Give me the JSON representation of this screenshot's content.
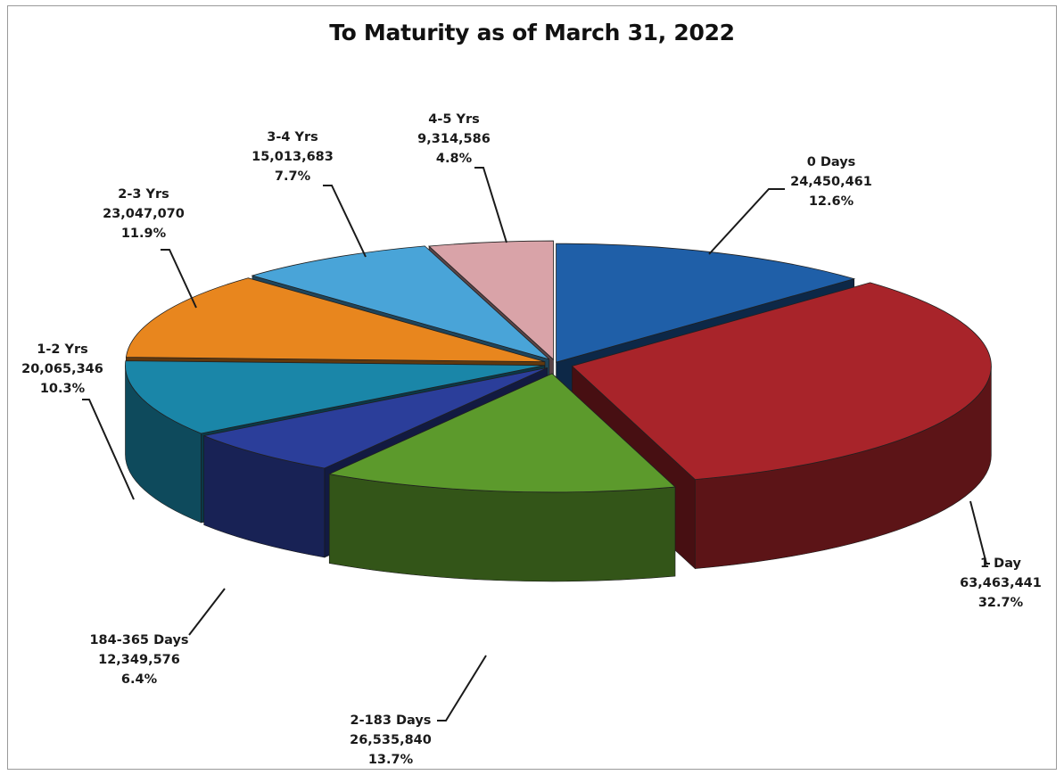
{
  "chart_data": {
    "type": "pie",
    "title": "To Maturity as of March 31, 2022",
    "slices": [
      {
        "label": "0 Days",
        "value": 24450461,
        "value_text": "24,450,461",
        "percent_text": "12.6%",
        "color": "#1f5fa8"
      },
      {
        "label": "1 Day",
        "value": 63463441,
        "value_text": "63,463,441",
        "percent_text": "32.7%",
        "color": "#a8242a"
      },
      {
        "label": "2-183 Days",
        "value": 26535840,
        "value_text": "26,535,840",
        "percent_text": "13.7%",
        "color": "#5c9a2c"
      },
      {
        "label": "184-365 Days",
        "value": 12349576,
        "value_text": "12,349,576",
        "percent_text": "6.4%",
        "color": "#2b3e9a"
      },
      {
        "label": "1-2 Yrs",
        "value": 20065346,
        "value_text": "20,065,346",
        "percent_text": "10.3%",
        "color": "#1a86a8"
      },
      {
        "label": "2-3 Yrs",
        "value": 23047070,
        "value_text": "23,047,070",
        "percent_text": "11.9%",
        "color": "#e8861e"
      },
      {
        "label": "3-4 Yrs",
        "value": 15013683,
        "value_text": "15,013,683",
        "percent_text": "7.7%",
        "color": "#49a4d8"
      },
      {
        "label": "4-5 Yrs",
        "value": 9314586,
        "value_text": "9,314,586",
        "percent_text": "4.8%",
        "color": "#d9a3a8"
      }
    ],
    "legend": "none",
    "style": "3d-exploded"
  }
}
